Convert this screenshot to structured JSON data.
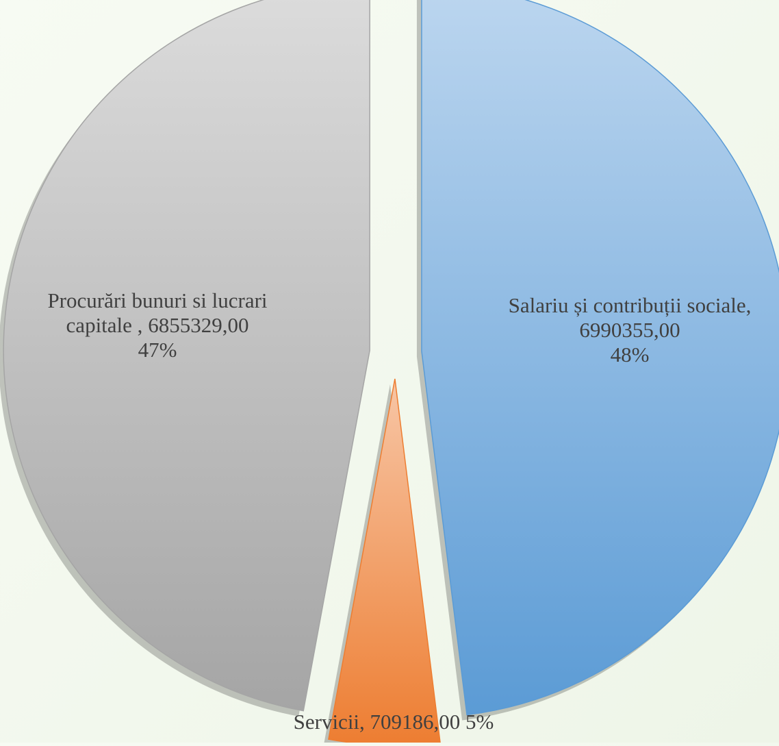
{
  "chart_data": {
    "type": "pie",
    "title": "",
    "exploded": true,
    "style": "3d",
    "slices": [
      {
        "label": "Salariu și contribuții sociale",
        "label_text": "Salariu și contribuții sociale,",
        "value_text": "6990355,00",
        "value": 6990355.0,
        "percent_text": "48%",
        "percent": 48,
        "color": "#5b9bd5",
        "color_light": "#bcd6ef"
      },
      {
        "label": "Servicii",
        "label_text": "Servicii,",
        "value_text": "709186,00",
        "value": 709186.0,
        "percent_text": "5%",
        "percent": 5,
        "color": "#ed7d31",
        "color_light": "#f7c6a6"
      },
      {
        "label": "Procurări bunuri si lucrari capitale",
        "label_text_line1": "Procurări bunuri si lucrari",
        "label_text_line2": "capitale ,",
        "value_text": "6855329,00",
        "value": 6855329.0,
        "percent_text": "47%",
        "percent": 47,
        "color": "#a5a5a5",
        "color_light": "#dcdcdc"
      }
    ]
  }
}
